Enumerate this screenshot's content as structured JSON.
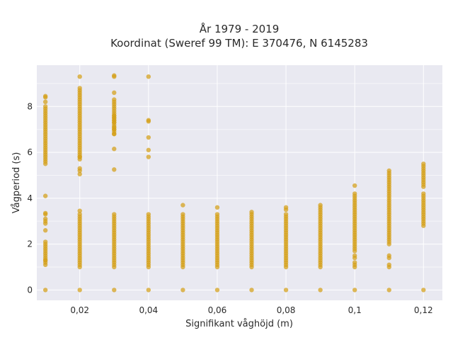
{
  "chart_data": {
    "type": "scatter",
    "title": "År 1979 - 2019",
    "subtitle": "Koordinat (Sweref 99 TM): E 370476, N 6145283",
    "xlabel": "Signifikant våghöjd (m)",
    "ylabel": "Vågperiod (s)",
    "xlim": [
      0.0075,
      0.1255
    ],
    "ylim": [
      -0.45,
      9.8
    ],
    "x_ticks": [
      0.02,
      0.04,
      0.06,
      0.08,
      0.1,
      0.12
    ],
    "x_tick_labels": [
      "0,02",
      "0,04",
      "0,06",
      "0,08",
      "0,1",
      "0,12"
    ],
    "y_ticks": [
      0,
      2,
      4,
      6,
      8
    ],
    "y_tick_labels": [
      "0",
      "2",
      "4",
      "6",
      "8"
    ],
    "grid": true,
    "color": "#d4a017",
    "background": "#e9e9f1",
    "columns": [
      {
        "x": 0.01,
        "segments": [
          [
            1.1,
            2.1
          ],
          [
            5.5,
            8.0
          ]
        ],
        "points": [
          0,
          1.3,
          2.6,
          2.9,
          3.0,
          3.1,
          3.3,
          3.35,
          4.1,
          8.2,
          8.4,
          8.45
        ]
      },
      {
        "x": 0.02,
        "segments": [
          [
            1.0,
            3.1
          ],
          [
            5.7,
            8.8
          ]
        ],
        "points": [
          0,
          3.2,
          3.3,
          3.45,
          5.05,
          5.2,
          5.3,
          5.8,
          9.3
        ]
      },
      {
        "x": 0.03,
        "segments": [
          [
            1.0,
            3.3
          ],
          [
            6.8,
            8.3
          ]
        ],
        "points": [
          0,
          5.25,
          6.15,
          6.8,
          7.0,
          7.1,
          7.3,
          7.4,
          7.5,
          7.6,
          8.6,
          9.3,
          9.35
        ]
      },
      {
        "x": 0.04,
        "segments": [
          [
            1.0,
            3.3
          ]
        ],
        "points": [
          0,
          5.8,
          6.1,
          6.65,
          7.35,
          7.4,
          9.3
        ]
      },
      {
        "x": 0.05,
        "segments": [
          [
            1.0,
            3.3
          ]
        ],
        "points": [
          0,
          3.7
        ]
      },
      {
        "x": 0.06,
        "segments": [
          [
            1.0,
            3.35
          ]
        ],
        "points": [
          0,
          3.6
        ]
      },
      {
        "x": 0.07,
        "segments": [
          [
            1.0,
            3.4
          ]
        ],
        "points": [
          0
        ]
      },
      {
        "x": 0.08,
        "segments": [
          [
            1.0,
            3.3
          ]
        ],
        "points": [
          0,
          3.5,
          3.6
        ]
      },
      {
        "x": 0.09,
        "segments": [
          [
            1.0,
            3.7
          ]
        ],
        "points": [
          0
        ]
      },
      {
        "x": 0.1,
        "segments": [
          [
            1.7,
            4.0
          ]
        ],
        "points": [
          0,
          1.0,
          1.1,
          1.2,
          1.4,
          1.5,
          4.1,
          4.2,
          4.55
        ]
      },
      {
        "x": 0.11,
        "segments": [
          [
            2.0,
            5.2
          ]
        ],
        "points": [
          0,
          1.0,
          1.1,
          1.4,
          1.5
        ]
      },
      {
        "x": 0.12,
        "segments": [
          [
            2.8,
            4.0
          ],
          [
            4.5,
            5.5
          ]
        ],
        "points": [
          0,
          4.1,
          4.2
        ]
      }
    ]
  }
}
